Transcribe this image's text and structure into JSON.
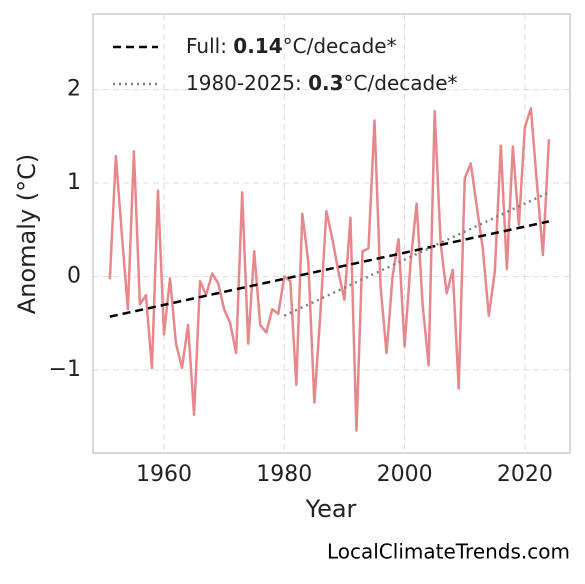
{
  "chart_data": {
    "type": "line",
    "x_label": "Year",
    "y_label": "Anomaly (°C)",
    "watermark": "LocalClimateTrends.com",
    "grid": true,
    "legend": "upper left",
    "xlim": [
      1948.2,
      2027.5
    ],
    "ylim": [
      -1.89,
      2.81
    ],
    "xticks": [
      1960,
      1980,
      2000,
      2020
    ],
    "yticks": [
      {
        "value": -1,
        "label": "−1"
      },
      0,
      1,
      2
    ],
    "x": [
      1951,
      1952,
      1953,
      1954,
      1955,
      1956,
      1957,
      1958,
      1959,
      1960,
      1961,
      1962,
      1963,
      1964,
      1965,
      1966,
      1967,
      1968,
      1969,
      1970,
      1971,
      1972,
      1973,
      1974,
      1975,
      1976,
      1977,
      1978,
      1979,
      1980,
      1981,
      1982,
      1983,
      1984,
      1985,
      1986,
      1987,
      1988,
      1989,
      1990,
      1991,
      1992,
      1993,
      1994,
      1995,
      1996,
      1997,
      1998,
      1999,
      2000,
      2001,
      2002,
      2003,
      2004,
      2005,
      2006,
      2007,
      2008,
      2009,
      2010,
      2011,
      2012,
      2013,
      2014,
      2015,
      2016,
      2017,
      2018,
      2019,
      2020,
      2021,
      2022,
      2023,
      2024
    ],
    "series": [
      {
        "color": "#e8878b",
        "values": [
          -0.03,
          1.29,
          0.45,
          -0.35,
          1.34,
          -0.3,
          -0.2,
          -0.98,
          0.92,
          -0.62,
          -0.02,
          -0.72,
          -0.98,
          -0.52,
          -1.48,
          -0.05,
          -0.2,
          0.03,
          -0.07,
          -0.35,
          -0.5,
          -0.82,
          0.9,
          -0.72,
          0.27,
          -0.52,
          -0.6,
          -0.35,
          -0.4,
          0.0,
          -0.05,
          -1.16,
          0.67,
          0.15,
          -1.35,
          -0.4,
          0.7,
          0.4,
          0.05,
          -0.25,
          0.63,
          -1.65,
          0.27,
          0.3,
          1.67,
          -0.1,
          -0.82,
          0.0,
          0.4,
          -0.75,
          0.15,
          0.78,
          -0.3,
          -0.95,
          1.77,
          0.35,
          -0.18,
          0.07,
          -1.2,
          1.05,
          1.21,
          0.75,
          0.3,
          -0.42,
          0.05,
          1.4,
          0.08,
          1.39,
          0.55,
          1.6,
          1.8,
          1.0,
          0.23,
          1.47
        ]
      }
    ],
    "trends": [
      {
        "label_parts": [
          "Full: ",
          "0.14",
          "°C/decade*"
        ],
        "color": "#000000",
        "dash": "dashed",
        "x": [
          1951,
          2024
        ],
        "values": [
          -0.43,
          0.59
        ]
      },
      {
        "label_parts": [
          "1980-2025: ",
          "0.3",
          "°C/decade*"
        ],
        "color": "#808080",
        "dash": "dotted",
        "x": [
          1980,
          2024
        ],
        "values": [
          -0.42,
          0.9
        ]
      }
    ]
  }
}
